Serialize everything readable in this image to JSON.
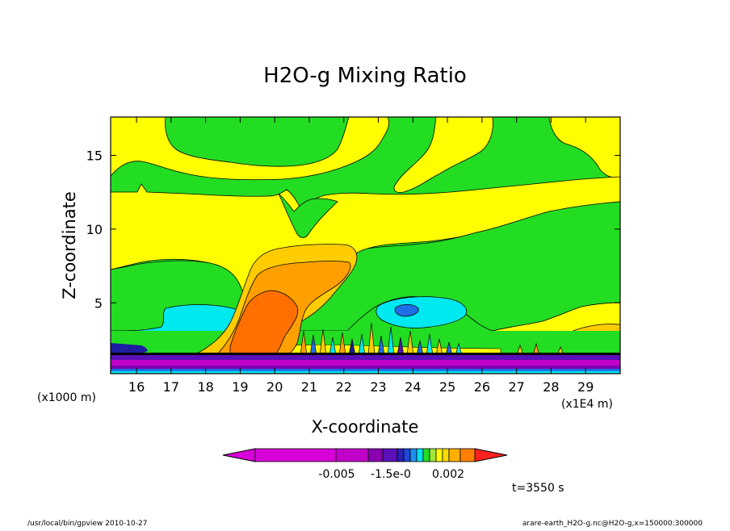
{
  "chart_data": {
    "type": "heatmap",
    "title": "H2O-g Mixing Ratio",
    "xlabel": "X-coordinate",
    "ylabel": "Z-coordinate",
    "x_unit_left": "(x1000 m)",
    "x_unit_right": "(x1E4 m)",
    "xlim": [
      15.25,
      30.0
    ],
    "ylim": [
      0.2,
      17.6
    ],
    "x_ticks": [
      16,
      17,
      18,
      19,
      20,
      21,
      22,
      23,
      24,
      25,
      26,
      27,
      28,
      29
    ],
    "x_tick_labels": [
      "16",
      "17",
      "18",
      "19",
      "20",
      "21",
      "22",
      "23",
      "24",
      "25",
      "26",
      "27",
      "28",
      "29"
    ],
    "y_ticks": [
      5,
      10,
      15
    ],
    "y_tick_labels": [
      "5",
      "10",
      "15"
    ],
    "colorbar_labels": [
      "-0.005",
      "-1.5e-0",
      "0.002"
    ],
    "time_label": "t=3550 s",
    "footer_left": "/usr/local/bin/gpview   2010-10-27",
    "footer_right": "arare-earth_H2O-g.nc@H2O-g,x=150000:300000",
    "colors": {
      "magenta": "#d800d8",
      "purple": "#7a00b0",
      "violet": "#5a10b8",
      "navy": "#1e1ea0",
      "blue": "#1e6ee6",
      "cyan": "#00e8f0",
      "green": "#22dd22",
      "yellow_green": "#b8f03c",
      "yellow": "#ffff00",
      "gold": "#ffcc00",
      "orange": "#ffa000",
      "dark_orange": "#ff7000",
      "red": "#ff2020"
    },
    "colorbar_colors": [
      "#d800d8",
      "#c000c8",
      "#8a00b0",
      "#5a10b8",
      "#2a20b0",
      "#1e48d8",
      "#1e90f0",
      "#00e0f0",
      "#22dd22",
      "#9ee83c",
      "#ffff00",
      "#ffd800",
      "#ffb000",
      "#ff8000",
      "#ff2020"
    ]
  }
}
